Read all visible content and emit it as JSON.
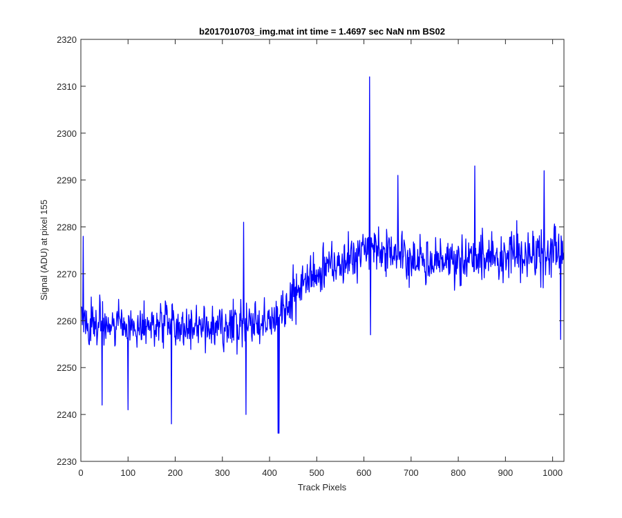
{
  "chart_data": {
    "type": "line",
    "title": "b2017010703_img.mat int time = 1.4697 sec  NaN nm BS02",
    "xlabel": "Track Pixels",
    "ylabel": "Signal (ADU) at pixel 155",
    "xlim": [
      0,
      1024
    ],
    "ylim": [
      2230,
      2320
    ],
    "xticks": [
      0,
      100,
      200,
      300,
      400,
      500,
      600,
      700,
      800,
      900,
      1000
    ],
    "yticks": [
      2230,
      2240,
      2250,
      2260,
      2270,
      2280,
      2290,
      2300,
      2310,
      2320
    ],
    "grid": false,
    "series": [
      {
        "name": "signal",
        "color": "#0000ff",
        "trend": [
          [
            0,
            2260
          ],
          [
            50,
            2259
          ],
          [
            100,
            2259
          ],
          [
            200,
            2258.5
          ],
          [
            300,
            2259
          ],
          [
            400,
            2259
          ],
          [
            430,
            2262
          ],
          [
            470,
            2268
          ],
          [
            520,
            2271
          ],
          [
            580,
            2274
          ],
          [
            650,
            2275
          ],
          [
            700,
            2273
          ],
          [
            800,
            2273
          ],
          [
            900,
            2274
          ],
          [
            1000,
            2275
          ],
          [
            1024,
            2276
          ]
        ],
        "noise_amplitude": 7.5,
        "notable_points": [
          {
            "x": 1,
            "y": 2263
          },
          {
            "x": 5,
            "y": 2278
          },
          {
            "x": 45,
            "y": 2242
          },
          {
            "x": 100,
            "y": 2241
          },
          {
            "x": 192,
            "y": 2238
          },
          {
            "x": 345,
            "y": 2281
          },
          {
            "x": 350,
            "y": 2240
          },
          {
            "x": 418,
            "y": 2236
          },
          {
            "x": 420,
            "y": 2236
          },
          {
            "x": 612,
            "y": 2312
          },
          {
            "x": 614,
            "y": 2257
          },
          {
            "x": 672,
            "y": 2291
          },
          {
            "x": 835,
            "y": 2293
          },
          {
            "x": 982,
            "y": 2292
          },
          {
            "x": 1017,
            "y": 2256
          },
          {
            "x": 1023,
            "y": 2274
          }
        ]
      }
    ]
  }
}
